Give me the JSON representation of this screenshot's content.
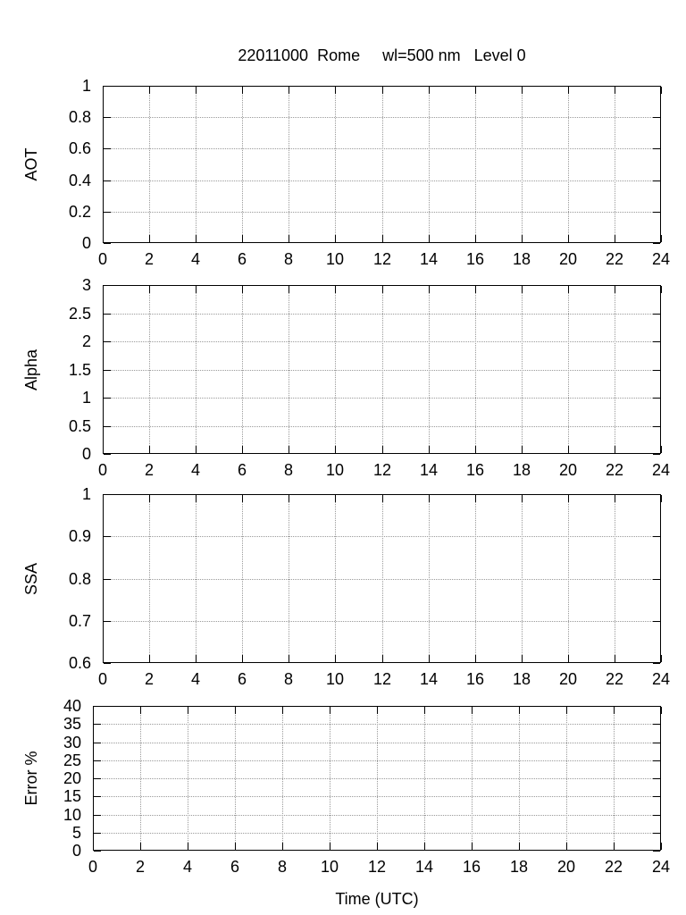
{
  "figure": {
    "title": "22011000  Rome     wl=500 nm   Level 0",
    "xlabel": "Time (UTC)",
    "background": "#ffffff"
  },
  "colors": {
    "axis": "#000000",
    "grid": "#9a9a9a",
    "text": "#000000",
    "background": "#ffffff"
  },
  "chart_data": [
    {
      "type": "line",
      "title": "22011000  Rome     wl=500 nm   Level 0",
      "ylabel": "AOT",
      "xlabel": "",
      "xlim": [
        0,
        24
      ],
      "ylim": [
        0,
        1
      ],
      "xticks": [
        0,
        2,
        4,
        6,
        8,
        10,
        12,
        14,
        16,
        18,
        20,
        22,
        24
      ],
      "xtick_labels": [
        "0",
        "2",
        "4",
        "6",
        "8",
        "10",
        "12",
        "14",
        "16",
        "18",
        "20",
        "22",
        "24"
      ],
      "yticks": [
        0,
        0.2,
        0.4,
        0.6,
        0.8,
        1
      ],
      "ytick_labels": [
        "0",
        "0.2",
        "0.4",
        "0.6",
        "0.8",
        "1"
      ],
      "grid": true,
      "legend": "none",
      "series": []
    },
    {
      "type": "line",
      "title": "",
      "ylabel": "Alpha",
      "xlabel": "",
      "xlim": [
        0,
        24
      ],
      "ylim": [
        0,
        3
      ],
      "xticks": [
        0,
        2,
        4,
        6,
        8,
        10,
        12,
        14,
        16,
        18,
        20,
        22,
        24
      ],
      "xtick_labels": [
        "0",
        "2",
        "4",
        "6",
        "8",
        "10",
        "12",
        "14",
        "16",
        "18",
        "20",
        "22",
        "24"
      ],
      "yticks": [
        0,
        0.5,
        1,
        1.5,
        2,
        2.5,
        3
      ],
      "ytick_labels": [
        "0",
        "0.5",
        "1",
        "1.5",
        "2",
        "2.5",
        "3"
      ],
      "grid": true,
      "legend": "none",
      "series": []
    },
    {
      "type": "line",
      "title": "",
      "ylabel": "SSA",
      "xlabel": "",
      "xlim": [
        0,
        24
      ],
      "ylim": [
        0.6,
        1
      ],
      "xticks": [
        0,
        2,
        4,
        6,
        8,
        10,
        12,
        14,
        16,
        18,
        20,
        22,
        24
      ],
      "xtick_labels": [
        "0",
        "2",
        "4",
        "6",
        "8",
        "10",
        "12",
        "14",
        "16",
        "18",
        "20",
        "22",
        "24"
      ],
      "yticks": [
        0.6,
        0.7,
        0.8,
        0.9,
        1
      ],
      "ytick_labels": [
        "0.6",
        "0.7",
        "0.8",
        "0.9",
        "1"
      ],
      "grid": true,
      "legend": "none",
      "series": []
    },
    {
      "type": "line",
      "title": "",
      "ylabel": "Error %",
      "xlabel": "Time (UTC)",
      "xlim": [
        0,
        24
      ],
      "ylim": [
        0,
        40
      ],
      "xticks": [
        0,
        2,
        4,
        6,
        8,
        10,
        12,
        14,
        16,
        18,
        20,
        22,
        24
      ],
      "xtick_labels": [
        "0",
        "2",
        "4",
        "6",
        "8",
        "10",
        "12",
        "14",
        "16",
        "18",
        "20",
        "22",
        "24"
      ],
      "yticks": [
        0,
        5,
        10,
        15,
        20,
        25,
        30,
        35,
        40
      ],
      "ytick_labels": [
        "0",
        "5",
        "10",
        "15",
        "20",
        "25",
        "30",
        "35",
        "40"
      ],
      "grid": true,
      "legend": "none",
      "series": []
    }
  ]
}
